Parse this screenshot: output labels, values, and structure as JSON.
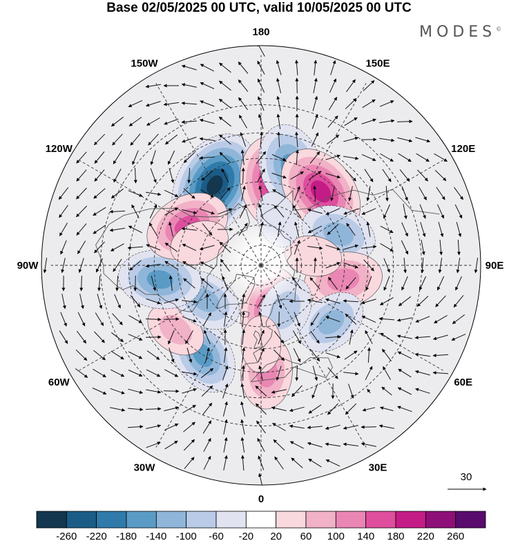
{
  "header": {
    "title": "Base 02/05/2025 00 UTC, valid 10/05/2025 00 UTC",
    "brand": "MODES",
    "brand_mark": "©"
  },
  "map": {
    "projection": "north-polar-stereographic",
    "longitude_labels": [
      {
        "text": "180",
        "lon": 180
      },
      {
        "text": "150E",
        "lon": 150
      },
      {
        "text": "120E",
        "lon": 120
      },
      {
        "text": "90E",
        "lon": 90
      },
      {
        "text": "60E",
        "lon": 60
      },
      {
        "text": "30E",
        "lon": 30
      },
      {
        "text": "0",
        "lon": 0
      },
      {
        "text": "30W",
        "lon": -30
      },
      {
        "text": "60W",
        "lon": -60
      },
      {
        "text": "90W",
        "lon": -90
      },
      {
        "text": "120W",
        "lon": -120
      },
      {
        "text": "150W",
        "lon": -150
      }
    ],
    "latitude_circles": [
      80,
      70,
      60,
      50,
      40,
      30,
      20
    ],
    "anomaly_centers": [
      {
        "lon": -150,
        "lat": 46,
        "value": -260
      },
      {
        "lon": 172,
        "lat": 50,
        "value": 190
      },
      {
        "lon": 163,
        "lat": 42,
        "value": -170
      },
      {
        "lon": 141,
        "lat": 45,
        "value": 200
      },
      {
        "lon": 112,
        "lat": 50,
        "value": -120
      },
      {
        "lon": 80,
        "lat": 50,
        "value": 130
      },
      {
        "lon": 51,
        "lat": 47,
        "value": -100
      },
      {
        "lon": 12,
        "lat": 68,
        "value": 150
      },
      {
        "lon": 28,
        "lat": 65,
        "value": -90
      },
      {
        "lon": 3,
        "lat": 40,
        "value": 110
      },
      {
        "lon": -33,
        "lat": 40,
        "value": -140
      },
      {
        "lon": -53,
        "lat": 40,
        "value": 60
      },
      {
        "lon": -58,
        "lat": 58,
        "value": -110
      },
      {
        "lon": -82,
        "lat": 42,
        "value": -150
      },
      {
        "lon": -118,
        "lat": 50,
        "value": 160
      },
      {
        "lon": -110,
        "lat": 58,
        "value": 50
      },
      {
        "lon": 0,
        "lat": 52,
        "value": 40
      },
      {
        "lon": 100,
        "lat": 64,
        "value": 40
      },
      {
        "lon": 160,
        "lat": 66,
        "value": -40
      }
    ],
    "wind_scale_label": "30"
  },
  "colorbar": {
    "ticks": [
      "-260",
      "-220",
      "-180",
      "-140",
      "-100",
      "-60",
      "-20",
      "20",
      "60",
      "100",
      "140",
      "180",
      "220",
      "260"
    ],
    "colors": [
      "#12374f",
      "#1b5c86",
      "#2f7aaa",
      "#5a9bc6",
      "#8fb6d9",
      "#b9cbe6",
      "#e1e3f1",
      "#ffffff",
      "#f9d8de",
      "#f1b1c6",
      "#ea86b3",
      "#df4e9d",
      "#c41c87",
      "#8e0f78",
      "#5a0b6e"
    ]
  }
}
